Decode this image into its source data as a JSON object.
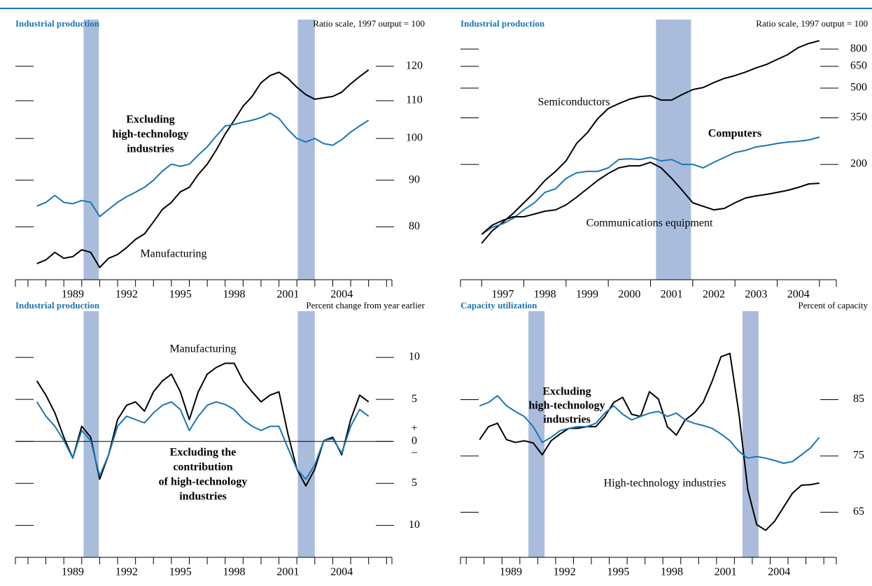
{
  "chart_data": [
    {
      "type": "line",
      "title": "Industrial production",
      "subtitle": "Ratio scale, 1997 output = 100",
      "log_scale": true,
      "x": [
        1987.5,
        1988,
        1988.5,
        1989,
        1989.5,
        1990,
        1990.5,
        1991,
        1991.5,
        1992,
        1992.5,
        1993,
        1993.5,
        1994,
        1994.5,
        1995,
        1995.5,
        1996,
        1996.5,
        1997,
        1997.5,
        1998,
        1998.5,
        1999,
        1999.5,
        2000,
        2000.5,
        2001,
        2001.5,
        2002,
        2002.5,
        2003,
        2003.5,
        2004,
        2004.5,
        2005,
        2005.5,
        2006
      ],
      "xlim": [
        1986.3,
        2007.3
      ],
      "xticks": [
        {
          "value": 1989.5,
          "label": "1989"
        },
        {
          "value": 1992.5,
          "label": "1992"
        },
        {
          "value": 1995.5,
          "label": "1995"
        },
        {
          "value": 1998.5,
          "label": "1998"
        },
        {
          "value": 2001.5,
          "label": "2001"
        },
        {
          "value": 2004.5,
          "label": "2004"
        }
      ],
      "ylim": [
        70,
        135
      ],
      "yticks": [
        80,
        90,
        100,
        110,
        120
      ],
      "recessions": [
        [
          1990.1,
          1990.95
        ],
        [
          2002.05,
          2003.0
        ]
      ],
      "series": [
        {
          "label": [
            "Manufacturing"
          ],
          "color": "#000000",
          "values": [
            72.9,
            73.6,
            75.0,
            73.9,
            74.2,
            75.5,
            75.0,
            72.2,
            73.9,
            74.6,
            75.9,
            77.5,
            78.6,
            81.0,
            83.6,
            85.1,
            87.4,
            88.4,
            91.3,
            93.7,
            97.1,
            101.1,
            104.7,
            108.5,
            111.2,
            115.1,
            117.2,
            118.2,
            116.4,
            113.8,
            111.7,
            110.4,
            110.8,
            111.2,
            112.4,
            114.8,
            116.9,
            118.9
          ]
        },
        {
          "label": [
            "Excluding",
            "high-technology",
            "industries"
          ],
          "color": "#1a75b4",
          "values": [
            84.3,
            85.1,
            86.6,
            85.1,
            84.8,
            85.5,
            85.1,
            82.1,
            83.6,
            85.1,
            86.3,
            87.3,
            88.4,
            90.0,
            92.1,
            93.7,
            93.2,
            93.7,
            95.9,
            97.9,
            100.6,
            103.2,
            103.6,
            104.2,
            104.7,
            105.4,
            106.6,
            105.2,
            102.3,
            100.0,
            99.1,
            100.0,
            98.7,
            98.3,
            99.7,
            101.6,
            103.2,
            104.7
          ]
        }
      ]
    },
    {
      "type": "line",
      "title": "Industrial production",
      "subtitle": "Ratio scale, 1997 output = 100",
      "log_scale": true,
      "x": [
        1997,
        1997.25,
        1997.5,
        1997.75,
        1998,
        1998.25,
        1998.5,
        1998.75,
        1999,
        1999.25,
        1999.5,
        1999.75,
        2000,
        2000.25,
        2000.5,
        2000.75,
        2001,
        2001.25,
        2001.5,
        2001.75,
        2002,
        2002.25,
        2002.5,
        2002.75,
        2003,
        2003.25,
        2003.5,
        2003.75,
        2004,
        2004.25,
        2004.5,
        2004.75,
        2005
      ],
      "xlim": [
        1996.5,
        2005.4
      ],
      "xticks": [
        {
          "value": 1997.5,
          "label": "1997"
        },
        {
          "value": 1998.5,
          "label": "1998"
        },
        {
          "value": 1999.5,
          "label": "1999"
        },
        {
          "value": 2000.5,
          "label": "2000"
        },
        {
          "value": 2001.5,
          "label": "2001"
        },
        {
          "value": 2002.5,
          "label": "2002"
        },
        {
          "value": 2003.5,
          "label": "2003"
        },
        {
          "value": 2004.5,
          "label": "2004"
        }
      ],
      "ylim": [
        50,
        1140
      ],
      "yticks": [
        200,
        350,
        500,
        650,
        800
      ],
      "recessions": [
        [
          2001.13,
          2001.96
        ]
      ],
      "series": [
        {
          "label": [
            "Semiconductors"
          ],
          "color": "#000000",
          "values": [
            77.4,
            90.0,
            99.6,
            111.1,
            126.0,
            142.9,
            164.9,
            183.9,
            208.6,
            257.3,
            291.9,
            346.7,
            391.7,
            415.6,
            437.2,
            451.8,
            455.9,
            433.3,
            433.3,
            463.4,
            491.4,
            503.9,
            534.6,
            562.4,
            581.4,
            606.4,
            637.9,
            665.4,
            705.8,
            748.2,
            813.7,
            856.0,
            884.6
          ]
        },
        {
          "label": [
            "Computers"
          ],
          "color": "#1a75b4",
          "values": [
            86.3,
            93.9,
            97.9,
            104.7,
            115.8,
            126.0,
            142.9,
            149.1,
            169.0,
            180.8,
            183.9,
            183.9,
            191.8,
            212.1,
            213.9,
            212.1,
            217.5,
            208.6,
            212.1,
            200,
            200,
            191.8,
            205.1,
            217.5,
            230.7,
            236.6,
            246.7,
            251.0,
            257.3,
            261.7,
            263.9,
            268.4,
            277.6
          ]
        },
        {
          "label": [
            "Communications equipment"
          ],
          "color": "#000000",
          "values": [
            86.3,
            96.3,
            102.1,
            106.5,
            106.5,
            110.1,
            113.9,
            115.8,
            122.9,
            134.8,
            149.1,
            164.9,
            179.3,
            191.8,
            196.6,
            196.6,
            205.1,
            191.8,
            169.0,
            146.5,
            126.0,
            120.8,
            115.8,
            117.8,
            126.0,
            133.6,
            137.0,
            139.4,
            142.9,
            146.5,
            151.6,
            158.1,
            159.4
          ]
        }
      ]
    },
    {
      "type": "line",
      "title": "Industrial production",
      "subtitle": "Percent change from year earlier",
      "log_scale": false,
      "zero_line": true,
      "zero_signs": [
        "+",
        "–"
      ],
      "x": [
        1987.5,
        1988,
        1988.5,
        1989,
        1989.5,
        1990,
        1990.5,
        1991,
        1991.5,
        1992,
        1992.5,
        1993,
        1993.5,
        1994,
        1994.5,
        1995,
        1995.5,
        1996,
        1996.5,
        1997,
        1997.5,
        1998,
        1998.5,
        1999,
        1999.5,
        2000,
        2000.5,
        2001,
        2001.5,
        2002,
        2002.5,
        2003,
        2003.5,
        2004,
        2004.5,
        2005,
        2005.5,
        2006
      ],
      "xlim": [
        1986.3,
        2007.3
      ],
      "xticks": [
        {
          "value": 1989.5,
          "label": "1989"
        },
        {
          "value": 1992.5,
          "label": "1992"
        },
        {
          "value": 1995.5,
          "label": "1995"
        },
        {
          "value": 1998.5,
          "label": "1998"
        },
        {
          "value": 2001.5,
          "label": "2001"
        },
        {
          "value": 2004.5,
          "label": "2004"
        }
      ],
      "ylim": [
        -13.8,
        15.5
      ],
      "yticks": [
        10,
        5,
        0,
        {
          "value": -5,
          "label": "5"
        },
        {
          "value": -10,
          "label": "10"
        }
      ],
      "recessions": [
        [
          1990.1,
          1990.95
        ],
        [
          2002.05,
          2003.0
        ]
      ],
      "series": [
        {
          "label": [
            "Manufacturing"
          ],
          "color": "#000000",
          "values": [
            7.2,
            5.5,
            3.4,
            0.5,
            -2.0,
            1.8,
            0.5,
            -4.5,
            -1.6,
            2.6,
            4.3,
            4.7,
            3.6,
            5.9,
            7.2,
            8.0,
            5.9,
            2.6,
            5.9,
            8.0,
            8.8,
            9.3,
            9.3,
            7.2,
            5.9,
            4.7,
            5.5,
            5.9,
            0.9,
            -3.3,
            -5.3,
            -3.3,
            0.1,
            0.5,
            -1.6,
            2.6,
            5.5,
            4.7
          ]
        },
        {
          "label": [
            "Excluding the",
            "contribution",
            "of high-technology",
            "industries"
          ],
          "color": "#1a75b4",
          "values": [
            4.7,
            3.0,
            1.8,
            0.1,
            -2.0,
            1.3,
            0.1,
            -4.1,
            -1.6,
            1.8,
            3.0,
            2.6,
            2.2,
            3.4,
            4.3,
            4.7,
            3.8,
            1.3,
            3.0,
            4.3,
            4.7,
            4.4,
            3.8,
            2.6,
            1.8,
            1.3,
            1.8,
            1.8,
            -0.8,
            -3.3,
            -4.5,
            -2.8,
            0.1,
            0.3,
            -1.4,
            1.8,
            3.8,
            3.0
          ]
        }
      ]
    },
    {
      "type": "line",
      "title": "Capacity utilization",
      "subtitle": "Percent of capacity",
      "log_scale": false,
      "x": [
        1987.75,
        1988.25,
        1988.75,
        1989.25,
        1989.75,
        1990.25,
        1990.75,
        1991.25,
        1991.75,
        1992.25,
        1992.75,
        1993.25,
        1993.75,
        1994.25,
        1994.75,
        1995.25,
        1995.75,
        1996.25,
        1996.75,
        1997.25,
        1997.75,
        1998.25,
        1998.75,
        1999.25,
        1999.75,
        2000.25,
        2000.75,
        2001.25,
        2001.75,
        2002.25,
        2002.75,
        2003.25,
        2003.75,
        2004.25,
        2004.75,
        2005.25,
        2005.75,
        2006.25,
        2006.75
      ],
      "xlim": [
        1986.68,
        2007.7
      ],
      "xticks": [
        {
          "value": 1989.5,
          "label": "1989"
        },
        {
          "value": 1992.5,
          "label": "1992"
        },
        {
          "value": 1995.5,
          "label": "1995"
        },
        {
          "value": 1998.5,
          "label": "1998"
        },
        {
          "value": 2001.5,
          "label": "2001"
        },
        {
          "value": 2004.5,
          "label": "2004"
        }
      ],
      "ylim": [
        57,
        100.7
      ],
      "yticks": [
        65,
        75,
        85
      ],
      "recessions": [
        [
          1990.48,
          1991.38
        ],
        [
          2002.45,
          2003.35
        ]
      ],
      "series": [
        {
          "label": [
            "High-technology industries"
          ],
          "color": "#000000",
          "values": [
            77.9,
            80.2,
            80.8,
            77.9,
            77.4,
            77.7,
            77.3,
            75.2,
            77.7,
            78.9,
            79.9,
            79.9,
            80.2,
            80.2,
            82.0,
            84.5,
            85.4,
            82.4,
            82.0,
            86.4,
            85.1,
            80.2,
            78.7,
            81.4,
            82.6,
            84.5,
            88.2,
            92.6,
            93.2,
            82.6,
            69.0,
            62.8,
            61.8,
            63.4,
            65.9,
            68.4,
            69.8,
            69.9,
            70.2
          ]
        },
        {
          "label": [
            "Excluding",
            "high-technology",
            "industries"
          ],
          "color": "#1a75b4",
          "values": [
            83.9,
            84.5,
            85.7,
            83.9,
            82.9,
            82.0,
            80.2,
            77.4,
            78.3,
            79.5,
            79.9,
            80.2,
            80.2,
            80.8,
            82.6,
            83.9,
            82.4,
            81.4,
            82.0,
            82.6,
            82.9,
            82.0,
            82.6,
            81.4,
            80.8,
            80.4,
            79.9,
            78.9,
            77.7,
            75.8,
            74.6,
            74.9,
            74.6,
            74.2,
            73.7,
            74.0,
            75.2,
            76.4,
            78.3
          ]
        }
      ]
    }
  ]
}
